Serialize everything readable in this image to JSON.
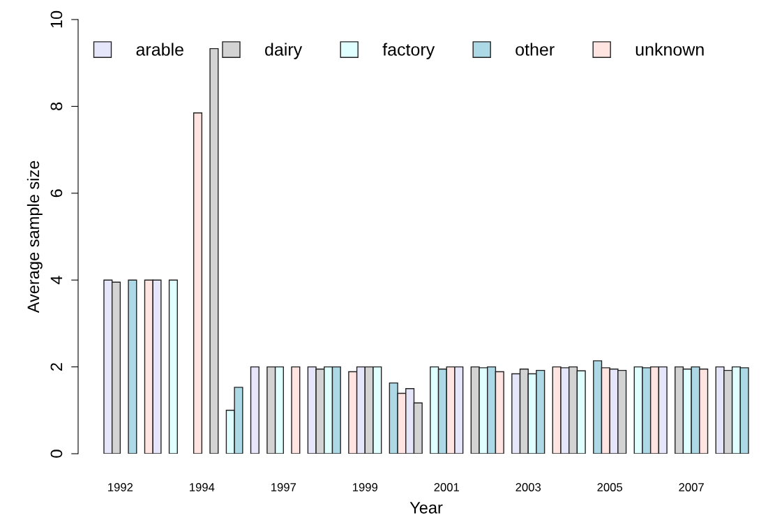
{
  "chart_data": {
    "type": "bar",
    "xlabel": "Year",
    "ylabel": "Average sample size",
    "categories": [
      "1992",
      null,
      "1994",
      null,
      "1997",
      null,
      "1999",
      null,
      "2001",
      null,
      "2003",
      null,
      "2005",
      null,
      "2007",
      null
    ],
    "series": [
      {
        "name": "arable",
        "color": "#e6e6fa",
        "values": [
          4,
          4,
          null,
          2,
          null,
          2,
          2,
          1.5,
          2,
          null,
          1.84,
          1.98,
          1.95,
          2,
          null,
          2
        ]
      },
      {
        "name": "dairy",
        "color": "#d3d3d3",
        "values": [
          3.95,
          null,
          9.33,
          null,
          2,
          1.95,
          2,
          1.17,
          null,
          2,
          1.95,
          2,
          1.92,
          null,
          2,
          1.92
        ]
      },
      {
        "name": "factory",
        "color": "#e0ffff",
        "values": [
          null,
          4,
          null,
          1.0,
          2,
          2,
          2,
          null,
          2,
          1.98,
          1.84,
          1.91,
          null,
          2,
          1.95,
          2
        ]
      },
      {
        "name": "other",
        "color": "#add8e6",
        "values": [
          4,
          null,
          null,
          1.53,
          null,
          2,
          null,
          1.63,
          1.95,
          2,
          1.92,
          null,
          2.14,
          1.98,
          2,
          1.98
        ]
      },
      {
        "name": "unknown",
        "color": "#ffe4e1",
        "values": [
          null,
          4,
          7.85,
          null,
          2,
          null,
          1.89,
          1.39,
          2,
          1.89,
          null,
          2,
          1.98,
          2,
          1.95,
          null
        ]
      }
    ],
    "ylim": [
      0,
      10
    ],
    "yticks": [
      0,
      2,
      4,
      6,
      8,
      10
    ],
    "grid": false,
    "legend": "top"
  }
}
